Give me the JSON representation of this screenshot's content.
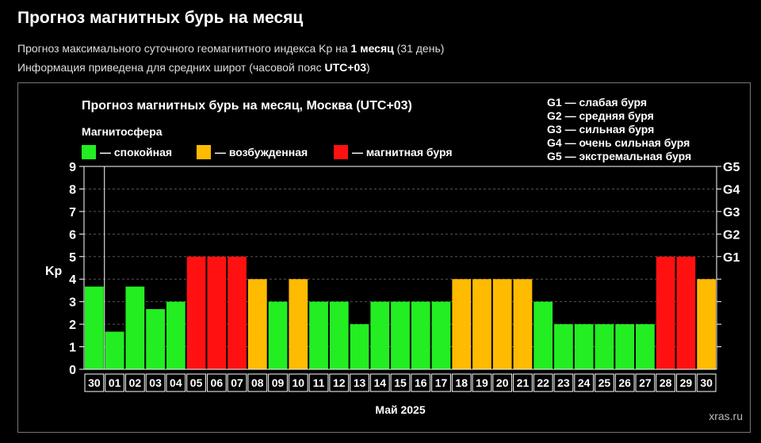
{
  "header": {
    "title": "Прогноз магнитных бурь на месяц",
    "line1_prefix": "Прогноз максимального суточного геомагнитного индекса Kp на ",
    "line1_bold": "1 месяц",
    "line1_suffix": " (31 день)",
    "line2_prefix": "Информация приведена для средних широт (часовой пояс ",
    "line2_bold": "UTC+03",
    "line2_suffix": ")"
  },
  "colors": {
    "calm": "#22ee22",
    "excited": "#ffbb00",
    "storm": "#ff1111"
  },
  "chart_data": {
    "type": "bar",
    "title": "Прогноз магнитных бурь на месяц, Москва (UTC+03)",
    "legend_title": "Магнитосфера",
    "legend": [
      {
        "key": "calm",
        "label": "— спокойная"
      },
      {
        "key": "excited",
        "label": "— возбужденная"
      },
      {
        "key": "storm",
        "label": "— магнитная буря"
      }
    ],
    "storm_scale": [
      "G1 — слабая буря",
      "G2 — средняя буря",
      "G3 — сильная буря",
      "G4 — очень сильная буря",
      "G5 — экстремальная буря"
    ],
    "ylabel": "Kp",
    "xlabel": "Май 2025",
    "ylim": [
      0,
      9
    ],
    "yticks": [
      0,
      1,
      2,
      3,
      4,
      5,
      6,
      7,
      8,
      9
    ],
    "right_ticks": [
      {
        "y": 5,
        "label": "G1"
      },
      {
        "y": 6,
        "label": "G2"
      },
      {
        "y": 7,
        "label": "G3"
      },
      {
        "y": 8,
        "label": "G4"
      },
      {
        "y": 9,
        "label": "G5"
      }
    ],
    "categories": [
      "30",
      "01",
      "02",
      "03",
      "04",
      "05",
      "06",
      "07",
      "08",
      "09",
      "10",
      "11",
      "12",
      "13",
      "14",
      "15",
      "16",
      "17",
      "18",
      "19",
      "20",
      "21",
      "22",
      "23",
      "24",
      "25",
      "26",
      "27",
      "28",
      "29",
      "30"
    ],
    "values": [
      3.67,
      1.67,
      3.67,
      2.67,
      3,
      5,
      5,
      5,
      4,
      3,
      4,
      3,
      3,
      2,
      3,
      3,
      3,
      3,
      4,
      4,
      4,
      4,
      3,
      2,
      2,
      2,
      2,
      2,
      5,
      5,
      4
    ],
    "levels": [
      "calm",
      "calm",
      "calm",
      "calm",
      "calm",
      "storm",
      "storm",
      "storm",
      "excited",
      "calm",
      "excited",
      "calm",
      "calm",
      "calm",
      "calm",
      "calm",
      "calm",
      "calm",
      "excited",
      "excited",
      "excited",
      "excited",
      "calm",
      "calm",
      "calm",
      "calm",
      "calm",
      "calm",
      "storm",
      "storm",
      "excited"
    ],
    "grid": true
  },
  "watermark": "xras.ru"
}
